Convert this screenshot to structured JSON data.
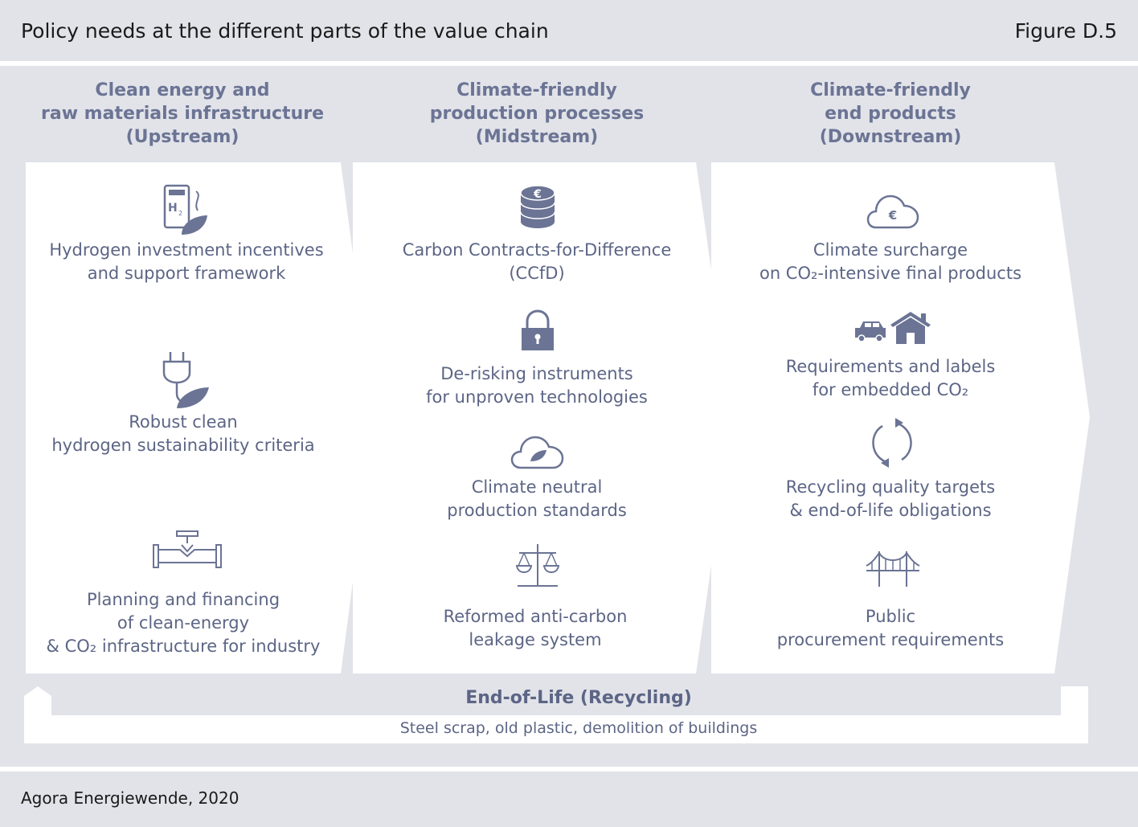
{
  "header": {
    "title": "Policy needs at the different parts of the value chain",
    "figure_number": "Figure D.5"
  },
  "columns": [
    {
      "heading": [
        "Clean energy and",
        "raw materials infrastructure",
        "(Upstream)"
      ],
      "items": [
        {
          "icon": "hydrogen-station-icon",
          "lines": [
            "Hydrogen investment incentives",
            "and support framework"
          ]
        },
        {
          "icon": "plug-leaf-icon",
          "lines": [
            "Robust clean",
            "hydrogen sustainability criteria"
          ]
        },
        {
          "icon": "pipeline-icon",
          "lines": [
            "Planning and financing",
            "of clean-energy",
            "& CO₂ infrastructure for industry"
          ]
        }
      ]
    },
    {
      "heading": [
        "Climate-friendly",
        "production processes",
        "(Midstream)"
      ],
      "items": [
        {
          "icon": "euro-coins-icon",
          "lines": [
            "Carbon Contracts-for-Difference",
            "(CCfD)"
          ]
        },
        {
          "icon": "padlock-icon",
          "lines": [
            "De-risking instruments",
            "for unproven technologies"
          ]
        },
        {
          "icon": "cloud-leaf-icon",
          "lines": [
            "Climate neutral",
            "production standards"
          ]
        },
        {
          "icon": "scales-icon",
          "lines": [
            "Reformed anti-carbon",
            "leakage system"
          ]
        }
      ]
    },
    {
      "heading": [
        "Climate-friendly",
        "end products",
        "(Downstream)"
      ],
      "items": [
        {
          "icon": "cloud-euro-icon",
          "lines": [
            "Climate surcharge",
            "on CO₂-intensive final products"
          ]
        },
        {
          "icon": "car-house-icon",
          "lines": [
            "Requirements and labels",
            "for embedded CO₂"
          ]
        },
        {
          "icon": "recycle-arrows-icon",
          "lines": [
            "Recycling quality targets",
            "& end-of-life obligations"
          ]
        },
        {
          "icon": "bridge-icon",
          "lines": [
            "Public",
            "procurement requirements"
          ]
        }
      ]
    }
  ],
  "recycling": {
    "title": "End-of-Life (Recycling)",
    "subtitle": "Steel scrap, old plastic, demolition of buildings"
  },
  "footer": {
    "source": "Agora Energiewende, 2020"
  },
  "colors": {
    "background": "#e2e3e9",
    "panel": "#ffffff",
    "text": "#5c6585",
    "heading": "#6b7494",
    "icon": "#6b7494"
  }
}
